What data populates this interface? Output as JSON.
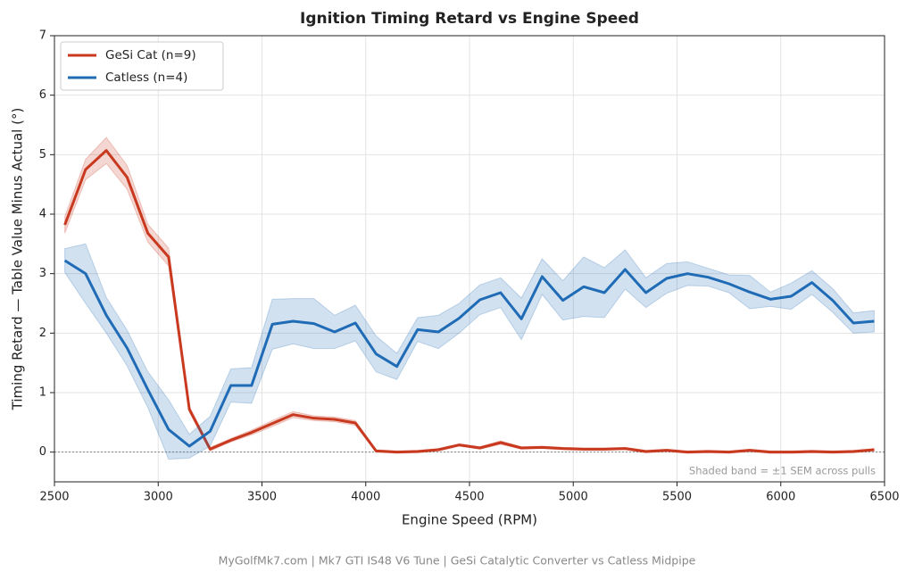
{
  "chart_data": {
    "type": "line",
    "title": "Ignition Timing Retard vs Engine Speed",
    "x_label": "Engine Speed (RPM)",
    "y_label": "Timing Retard — Table Value Minus Actual (°)",
    "annotation": "Shaded band = ±1 SEM across pulls",
    "footer": "MyGolfMk7.com  |  Mk7 GTI IS48 V6 Tune  |  GeSi Catalytic Converter vs Catless Midpipe",
    "x": [
      2550,
      2650,
      2750,
      2850,
      2950,
      3050,
      3150,
      3250,
      3350,
      3450,
      3550,
      3650,
      3750,
      3850,
      3950,
      4050,
      4150,
      4250,
      4350,
      4450,
      4550,
      4650,
      4750,
      4850,
      4950,
      5050,
      5150,
      5250,
      5350,
      5450,
      5550,
      5650,
      5750,
      5850,
      5950,
      6050,
      6150,
      6250,
      6350,
      6450
    ],
    "series": [
      {
        "name": "GeSi Cat (n=9)",
        "color": "#c8391f",
        "values": [
          3.82,
          4.75,
          5.07,
          4.62,
          3.68,
          3.28,
          0.72,
          0.05,
          0.2,
          0.33,
          0.48,
          0.63,
          0.57,
          0.55,
          0.49,
          0.02,
          0.0,
          0.01,
          0.04,
          0.12,
          0.07,
          0.16,
          0.07,
          0.08,
          0.06,
          0.05,
          0.05,
          0.06,
          0.01,
          0.03,
          0.0,
          0.01,
          0.0,
          0.03,
          0.0,
          0.0,
          0.01,
          0.0,
          0.01,
          0.04
        ],
        "errors": [
          0.14,
          0.17,
          0.22,
          0.2,
          0.15,
          0.15,
          0.05,
          0.03,
          0.03,
          0.04,
          0.05,
          0.05,
          0.04,
          0.04,
          0.04,
          0.02,
          0.02,
          0.02,
          0.02,
          0.02,
          0.02,
          0.03,
          0.02,
          0.02,
          0.02,
          0.02,
          0.02,
          0.02,
          0.02,
          0.02,
          0.02,
          0.02,
          0.02,
          0.02,
          0.02,
          0.02,
          0.02,
          0.02,
          0.02,
          0.02
        ]
      },
      {
        "name": "Catless (n=4)",
        "color": "#1f6bb5",
        "values": [
          3.22,
          3.0,
          2.3,
          1.75,
          1.05,
          0.38,
          0.1,
          0.35,
          1.12,
          1.12,
          2.15,
          2.2,
          2.16,
          2.02,
          2.17,
          1.65,
          1.44,
          2.06,
          2.02,
          2.25,
          2.56,
          2.68,
          2.24,
          2.95,
          2.55,
          2.78,
          2.68,
          3.07,
          2.68,
          2.92,
          3.0,
          2.94,
          2.83,
          2.69,
          2.57,
          2.62,
          2.85,
          2.55,
          2.17,
          2.2
        ],
        "errors": [
          0.2,
          0.5,
          0.3,
          0.3,
          0.3,
          0.5,
          0.2,
          0.25,
          0.28,
          0.3,
          0.42,
          0.38,
          0.42,
          0.28,
          0.3,
          0.3,
          0.22,
          0.2,
          0.28,
          0.25,
          0.25,
          0.25,
          0.35,
          0.3,
          0.33,
          0.5,
          0.42,
          0.33,
          0.25,
          0.25,
          0.2,
          0.15,
          0.15,
          0.28,
          0.12,
          0.22,
          0.2,
          0.2,
          0.17,
          0.18
        ]
      }
    ],
    "xlim": [
      2500,
      6500
    ],
    "xticks": [
      2500,
      3000,
      3500,
      4000,
      4500,
      5000,
      5500,
      6000,
      6500
    ],
    "ylim": [
      -0.5,
      7
    ],
    "yticks": [
      0,
      1,
      2,
      3,
      4,
      5,
      6,
      7
    ],
    "reference_line": 0,
    "grid": true,
    "legend": "upper left"
  }
}
